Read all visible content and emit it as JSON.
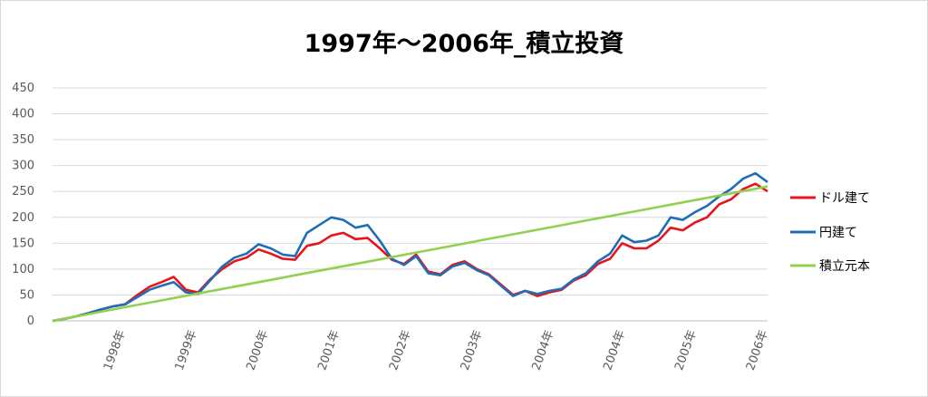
{
  "chart_data": {
    "type": "line",
    "title": "1997年～2006年_積立投資",
    "ylim": [
      0,
      450
    ],
    "yticks": [
      "0",
      "50",
      "100",
      "150",
      "200",
      "250",
      "300",
      "350",
      "400",
      "450"
    ],
    "xtick_labels": [
      "1998年",
      "1999年",
      "2000年",
      "2001年",
      "2002年",
      "2003年",
      "2004年",
      "2004年",
      "2005年",
      "2006年"
    ],
    "grid": true,
    "legend_position": "right",
    "x": [
      0,
      2,
      4,
      6,
      8,
      10,
      12,
      14,
      16,
      18,
      20,
      22,
      24,
      26,
      28,
      30,
      32,
      34,
      36,
      38,
      40,
      42,
      44,
      46,
      48,
      50,
      52,
      54,
      56,
      58,
      60,
      62,
      64,
      66,
      68,
      70,
      72,
      74,
      76,
      78,
      80,
      82,
      84,
      86,
      88,
      90,
      92,
      94,
      96,
      98,
      100,
      102,
      104,
      106,
      108,
      110,
      112,
      114,
      116,
      118
    ],
    "series": [
      {
        "name": "ドル建て",
        "color": "#e8141d",
        "values": [
          0,
          4,
          9,
          15,
          22,
          28,
          32,
          50,
          66,
          75,
          85,
          60,
          55,
          80,
          100,
          115,
          122,
          138,
          130,
          120,
          118,
          145,
          150,
          165,
          170,
          158,
          160,
          140,
          118,
          110,
          128,
          95,
          90,
          108,
          115,
          100,
          90,
          70,
          50,
          58,
          48,
          55,
          60,
          78,
          88,
          110,
          120,
          150,
          140,
          140,
          155,
          180,
          175,
          190,
          200,
          225,
          235,
          255,
          265,
          250
        ]
      },
      {
        "name": "円建て",
        "color": "#1f6db5",
        "values": [
          0,
          4,
          9,
          15,
          22,
          28,
          32,
          46,
          60,
          68,
          75,
          55,
          52,
          78,
          105,
          122,
          130,
          148,
          140,
          128,
          125,
          170,
          185,
          200,
          195,
          180,
          185,
          155,
          120,
          108,
          125,
          92,
          88,
          105,
          112,
          98,
          88,
          68,
          48,
          58,
          52,
          58,
          62,
          80,
          92,
          115,
          130,
          165,
          152,
          155,
          165,
          200,
          195,
          210,
          222,
          240,
          255,
          275,
          285,
          268
        ]
      },
      {
        "name": "積立元本",
        "color": "#92d050",
        "values": [
          0,
          4.4,
          8.8,
          13.2,
          17.6,
          22,
          26.4,
          30.8,
          35.2,
          39.6,
          44,
          48.4,
          52.8,
          57.2,
          61.6,
          66,
          70.4,
          74.8,
          79.2,
          83.6,
          88,
          92.4,
          96.8,
          101.2,
          105.6,
          110,
          114.4,
          118.8,
          123.2,
          127.6,
          132,
          136.4,
          140.8,
          145.2,
          149.6,
          154,
          158.4,
          162.8,
          167.2,
          171.6,
          176,
          180.4,
          184.8,
          189.2,
          193.6,
          198,
          202.4,
          206.8,
          211.2,
          215.6,
          220,
          224.4,
          228.8,
          233.2,
          237.6,
          242,
          246.4,
          250.8,
          255.2,
          259.6
        ]
      }
    ]
  }
}
